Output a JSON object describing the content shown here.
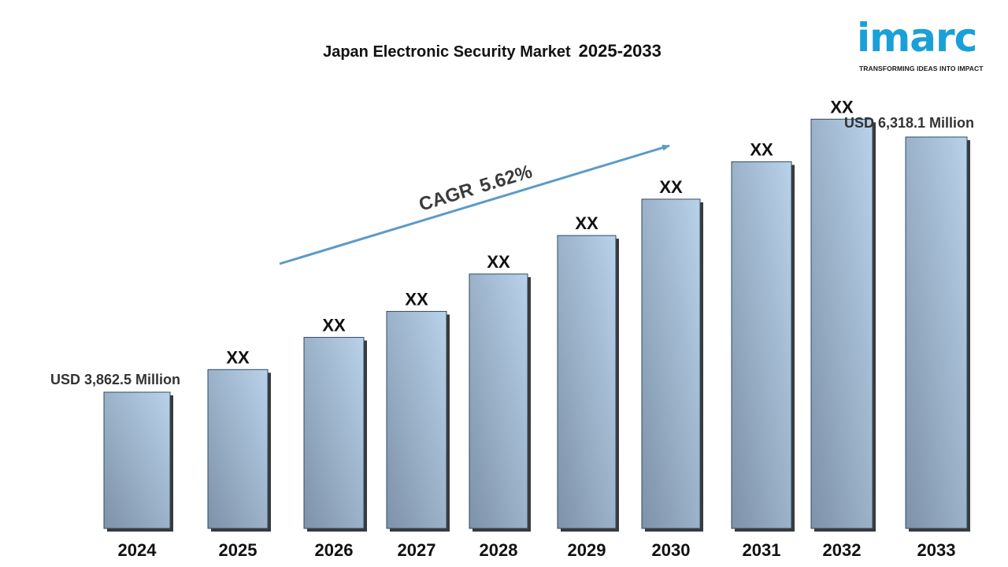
{
  "chart_data": {
    "type": "bar",
    "title": "Japan Electronic Security Market",
    "title_period": "2025-2033",
    "categories": [
      "2024",
      "2025",
      "2026",
      "2027",
      "2028",
      "2029",
      "2030",
      "2031",
      "2032",
      "2033"
    ],
    "value_labels": [
      "",
      "XX",
      "XX",
      "XX",
      "XX",
      "XX",
      "XX",
      "XX",
      "XX",
      ""
    ],
    "values": [
      3862.5,
      4080,
      4390,
      4640,
      5000,
      5370,
      5720,
      6080,
      6490,
      6318.1
    ],
    "unit": "USD Million",
    "start_label": "USD 3,862.5 Million",
    "end_label": "USD  6,318.1 Million",
    "cagr_label": "CAGR",
    "cagr_value": "5.62%",
    "xlabel": "",
    "ylabel": "",
    "grid": false,
    "legend": "none",
    "colors": {
      "bar_light": "#b8d2ea",
      "bar_dark": "#7e92a8",
      "bar_edge": "#2f4a66",
      "arrow": "#5b9bc8"
    }
  },
  "brand": {
    "logo_text": "imarc",
    "tagline": "TRANSFORMING IDEAS INTO IMPACT",
    "color": "#1aa0d8"
  }
}
